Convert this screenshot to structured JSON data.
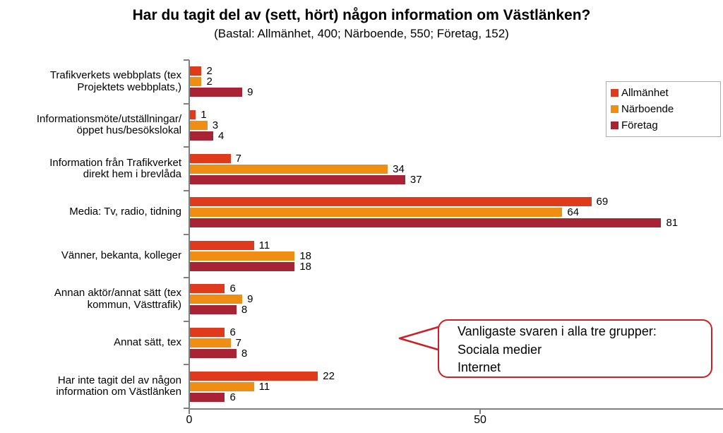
{
  "title": "Har du tagit del av (sett, hört) någon information om Västlänken?",
  "subtitle": "(Bastal: Allmänhet, 400; Närboende, 550; Företag, 152)",
  "legend": {
    "items": [
      {
        "label": "Allmänhet",
        "color": "#de3a1b"
      },
      {
        "label": "Närboende",
        "color": "#ef8e13"
      },
      {
        "label": "Företag",
        "color": "#a82334"
      }
    ]
  },
  "callout": {
    "lines": [
      "Vanligaste svaren i alla tre grupper:",
      "Sociala medier",
      "Internet"
    ],
    "border_color": "#cb2026"
  },
  "chart_data": {
    "type": "bar",
    "orientation": "horizontal",
    "title": "Har du tagit del av (sett, hört) någon information om Västlänken?",
    "subtitle": "(Bastal: Allmänhet, 400; Närboende, 550; Företag, 152)",
    "categories": [
      "Trafikverkets webbplats (tex Projektets webbplats,)",
      "Informationsmöte/utställningar/ öppet hus/besökslokal",
      "Information från Trafikverket direkt hem i brevlåda",
      "Media: Tv, radio, tidning",
      "Vänner, bekanta, kolleger",
      "Annan aktör/annat sätt (tex kommun, Västtrafik)",
      "Annat sätt, tex",
      "Har inte tagit del av någon information om Västlänken"
    ],
    "category_label_lines": [
      [
        "Trafikverkets webbplats (tex",
        "Projektets webbplats,)"
      ],
      [
        "Informationsmöte/utställningar/",
        "öppet hus/besökslokal"
      ],
      [
        "Information från Trafikverket",
        "direkt hem i brevlåda"
      ],
      [
        "Media: Tv, radio, tidning"
      ],
      [
        "Vänner, bekanta, kolleger"
      ],
      [
        "Annan aktör/annat sätt (tex",
        "kommun, Västtrafik)"
      ],
      [
        "Annat sätt, tex"
      ],
      [
        "Har inte tagit del av någon",
        "information om Västlänken"
      ]
    ],
    "series": [
      {
        "name": "Allmänhet",
        "color": "#de3a1b",
        "values": [
          2,
          1,
          7,
          69,
          11,
          6,
          6,
          22
        ]
      },
      {
        "name": "Närboende",
        "color": "#ef8e13",
        "values": [
          2,
          3,
          34,
          64,
          18,
          9,
          7,
          11
        ]
      },
      {
        "name": "Företag",
        "color": "#a82334",
        "values": [
          9,
          4,
          37,
          81,
          18,
          8,
          8,
          6
        ]
      }
    ],
    "xlabel": "",
    "ylabel": "",
    "x_ticks": [
      0,
      50
    ],
    "x_tick_labels": [
      "0",
      "50"
    ],
    "xlim": [
      0,
      91.5
    ],
    "grid": false,
    "data_labels": true,
    "legend_position": "top-right",
    "axis_color": "#808080"
  }
}
